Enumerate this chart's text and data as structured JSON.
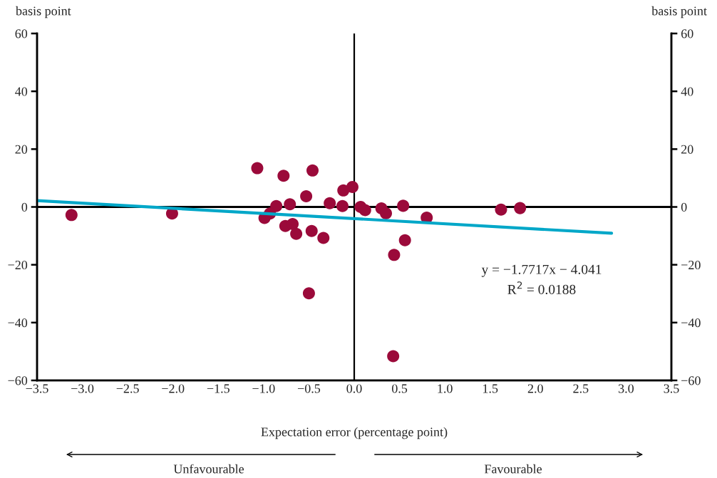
{
  "chart_data": {
    "type": "scatter",
    "xlabel": "Expectation error (percentage point)",
    "ylabel": "basis point",
    "y2label": "basis point",
    "xlim": [
      -3.5,
      3.5
    ],
    "ylim": [
      -60,
      60
    ],
    "y2lim": [
      -60,
      60
    ],
    "xticks": [
      {
        "value": -3.5,
        "label": "−3.5"
      },
      {
        "value": -3.0,
        "label": "−3.0"
      },
      {
        "value": -2.5,
        "label": "−2.5"
      },
      {
        "value": -2.0,
        "label": "−2.0"
      },
      {
        "value": -1.5,
        "label": "−1.5"
      },
      {
        "value": -1.0,
        "label": "−1.0"
      },
      {
        "value": -0.5,
        "label": "−0.5"
      },
      {
        "value": 0,
        "label": "0.0"
      },
      {
        "value": 0.5,
        "label": "0.5"
      },
      {
        "value": 1.0,
        "label": "1.0"
      },
      {
        "value": 1.5,
        "label": "1.5"
      },
      {
        "value": 2.0,
        "label": "2.0"
      },
      {
        "value": 2.5,
        "label": "2.5"
      },
      {
        "value": 3.0,
        "label": "3.0"
      },
      {
        "value": 3.5,
        "label": "3.5"
      }
    ],
    "yticks": [
      {
        "value": -60,
        "label": "−60"
      },
      {
        "value": -40,
        "label": "−40"
      },
      {
        "value": -20,
        "label": "−20"
      },
      0,
      20,
      40,
      60
    ],
    "y2ticks": [
      {
        "value": -60,
        "label": "−60"
      },
      {
        "value": -40,
        "label": "−40"
      },
      {
        "value": -20,
        "label": "−20"
      },
      0,
      20,
      40,
      60
    ],
    "grid": false,
    "marker": "circle",
    "series": [
      {
        "color": "#9b0a3a",
        "x": [
          -1.07,
          -0.78,
          -0.46,
          -0.02,
          -0.12,
          -0.53,
          -0.86,
          -0.71,
          -0.27,
          -0.13,
          0.07,
          0.12,
          0.3,
          0.35,
          0.54,
          0.8,
          -0.99,
          -0.93,
          -0.76,
          -0.68,
          -0.64,
          -0.47,
          -0.34,
          0.56,
          0.44,
          -0.5,
          -3.12,
          -2.01,
          0.43,
          1.62,
          1.83
        ],
        "values": [
          13.4,
          10.8,
          12.6,
          6.9,
          5.7,
          3.7,
          0.3,
          0.9,
          1.3,
          0.3,
          0,
          -1.1,
          -0.5,
          -2.2,
          0.4,
          -3.7,
          -3.8,
          -2.3,
          -6.6,
          -5.9,
          -9.3,
          -8.3,
          -10.7,
          -11.5,
          -16.6,
          -29.9,
          -2.8,
          -2.3,
          -51.6,
          -0.9,
          -0.4
        ]
      },
      {
        "type": "line",
        "color": "#00a7c8",
        "marker": "none",
        "x": [
          -3.5,
          2.84
        ],
        "values": [
          2.2,
          -9.1
        ]
      }
    ],
    "ref_lines": [
      {
        "axis": "x",
        "value": 0,
        "color": "#000000"
      },
      {
        "axis": "y",
        "value": 0,
        "color": "#000000"
      }
    ],
    "annotations": [
      "y = −1.7717x − 4.041",
      "R$^{2}$ = 0.0188",
      "Unfavourable",
      "Favourable"
    ]
  }
}
